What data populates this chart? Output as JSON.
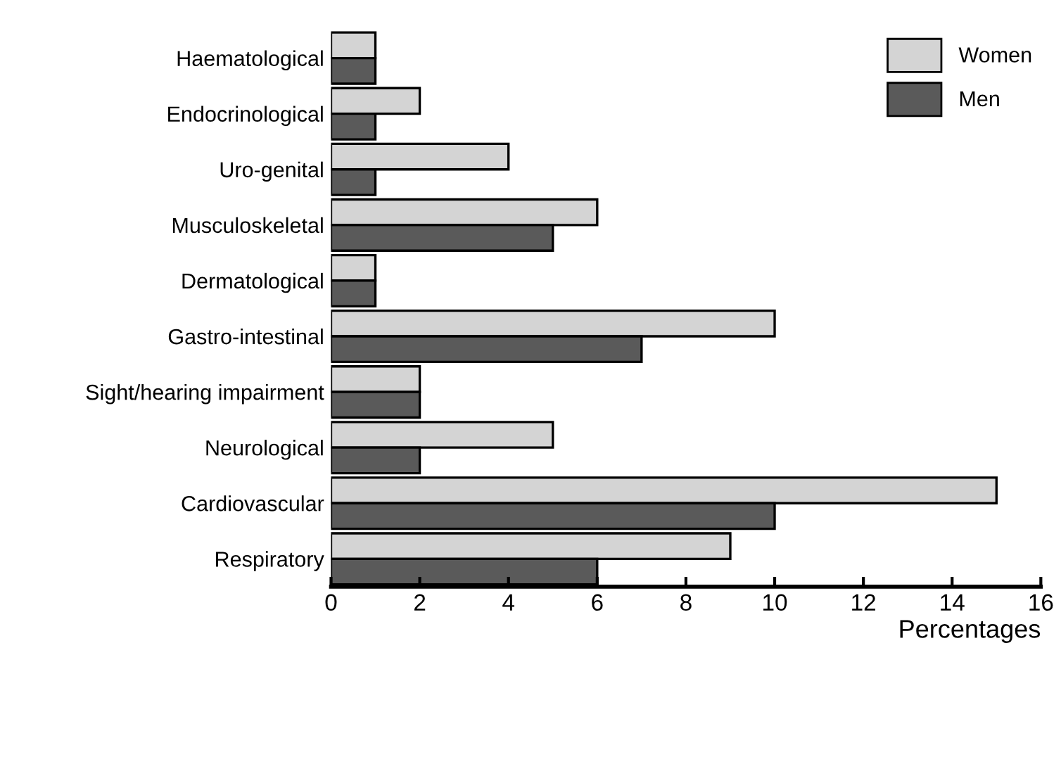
{
  "chart_data": {
    "type": "bar",
    "orientation": "horizontal",
    "xlabel": "Percentages",
    "categories": [
      "Haematological",
      "Endocrinological",
      "Uro-genital",
      "Musculoskeletal",
      "Dermatological",
      "Gastro-intestinal",
      "Sight/hearing impairment",
      "Neurological",
      "Cardiovascular",
      "Respiratory"
    ],
    "series": [
      {
        "name": "Women",
        "color": "#d4d4d4",
        "values": [
          1,
          2,
          4,
          6,
          1,
          10,
          2,
          5,
          15,
          9
        ]
      },
      {
        "name": "Men",
        "color": "#5a5a5a",
        "values": [
          1,
          1,
          1,
          5,
          1,
          7,
          2,
          2,
          10,
          6
        ]
      }
    ],
    "xlim": [
      0,
      16
    ],
    "xticks": [
      0,
      2,
      4,
      6,
      8,
      10,
      12,
      14,
      16
    ],
    "legend": "top right",
    "grid": false
  }
}
